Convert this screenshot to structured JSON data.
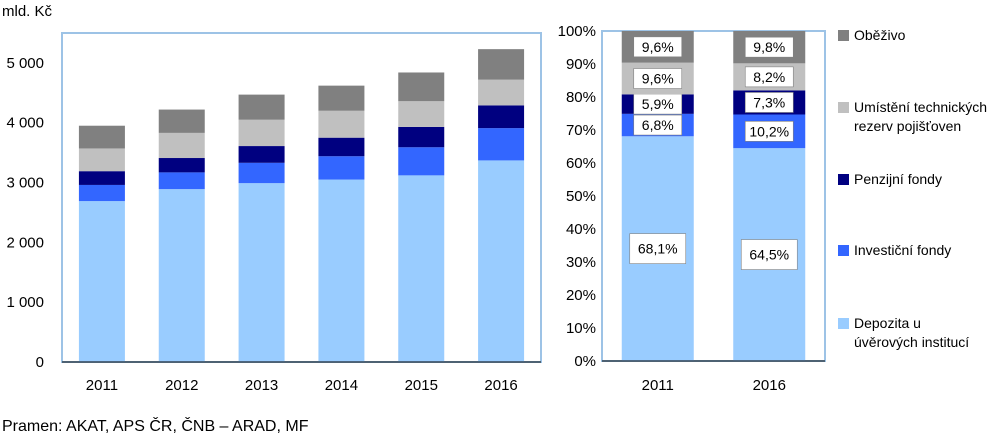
{
  "chart_data": [
    {
      "type": "bar",
      "stacked": true,
      "ylabel": "mld. Kč",
      "ylim": [
        0,
        5500
      ],
      "yticks": [
        0,
        1000,
        2000,
        3000,
        4000,
        5000
      ],
      "ytick_labels": [
        "0",
        "1 000",
        "2 000",
        "3 000",
        "4 000",
        "5 000"
      ],
      "categories": [
        "2011",
        "2012",
        "2013",
        "2014",
        "2015",
        "2016"
      ],
      "series": [
        {
          "name": "Depozita u úvěrových institucí",
          "color": "#99ccff",
          "values": [
            2690,
            2890,
            2990,
            3050,
            3120,
            3370
          ]
        },
        {
          "name": "Investiční fondy",
          "color": "#3366ff",
          "values": [
            270,
            280,
            340,
            390,
            470,
            540
          ]
        },
        {
          "name": "Penzijní fondy",
          "color": "#000080",
          "values": [
            230,
            240,
            280,
            310,
            340,
            380
          ]
        },
        {
          "name": "Umístění technických rezerv pojišťoven",
          "color": "#c0c0c0",
          "values": [
            380,
            420,
            440,
            450,
            430,
            430
          ]
        },
        {
          "name": "Oběživo",
          "color": "#808080",
          "values": [
            380,
            390,
            420,
            420,
            480,
            510
          ]
        }
      ]
    },
    {
      "type": "bar",
      "stacked": true,
      "percent": true,
      "ylim": [
        0,
        100
      ],
      "yticks": [
        0,
        10,
        20,
        30,
        40,
        50,
        60,
        70,
        80,
        90,
        100
      ],
      "ytick_labels": [
        "0%",
        "10%",
        "20%",
        "30%",
        "40%",
        "50%",
        "60%",
        "70%",
        "80%",
        "90%",
        "100%"
      ],
      "categories": [
        "2011",
        "2016"
      ],
      "series": [
        {
          "name": "Depozita u úvěrových institucí",
          "color": "#99ccff",
          "values": [
            68.1,
            64.5
          ],
          "labels": [
            "68,1%",
            "64,5%"
          ]
        },
        {
          "name": "Investiční fondy",
          "color": "#3366ff",
          "values": [
            6.8,
            10.2
          ],
          "labels": [
            "6,8%",
            "10,2%"
          ]
        },
        {
          "name": "Penzijní fondy",
          "color": "#000080",
          "values": [
            5.9,
            7.3
          ],
          "labels": [
            "5,9%",
            "7,3%"
          ]
        },
        {
          "name": "Umístění technických rezerv pojišťoven",
          "color": "#c0c0c0",
          "values": [
            9.6,
            8.2
          ],
          "labels": [
            "9,6%",
            "8,2%"
          ]
        },
        {
          "name": "Oběživo",
          "color": "#808080",
          "values": [
            9.6,
            9.8
          ],
          "labels": [
            "9,6%",
            "9,8%"
          ]
        }
      ]
    }
  ],
  "legend": [
    {
      "label": "Oběživo",
      "color": "#808080"
    },
    {
      "label": "Umístění technických rezerv pojišťoven",
      "color": "#c0c0c0"
    },
    {
      "label": "Penzijní fondy",
      "color": "#000080"
    },
    {
      "label": "Investiční fondy",
      "color": "#3366ff"
    },
    {
      "label": "Depozita u úvěrových institucí",
      "color": "#99ccff"
    }
  ],
  "source": "Pramen: AKAT, APS ČR, ČNB – ARAD, MF"
}
